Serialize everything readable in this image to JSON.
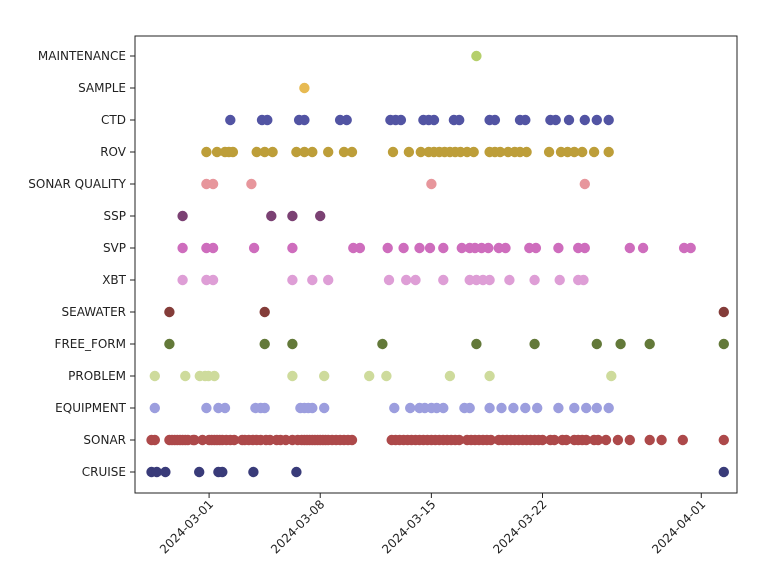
{
  "chart_data": {
    "type": "scatter",
    "title": "",
    "xlabel": "",
    "ylabel": "",
    "grid": false,
    "x_axis": {
      "kind": "date",
      "range": [
        "2024-02-25T08:00",
        "2024-04-03T06:00"
      ],
      "ticks": [
        "2024-03-01",
        "2024-03-08",
        "2024-03-15",
        "2024-03-22",
        "2024-04-01"
      ]
    },
    "categories": [
      "CRUISE",
      "SONAR",
      "EQUIPMENT",
      "PROBLEM",
      "FREE_FORM",
      "SEAWATER",
      "XBT",
      "SVP",
      "SSP",
      "SONAR QUALITY",
      "ROV",
      "CTD",
      "SAMPLE",
      "MAINTENANCE"
    ],
    "series": [
      {
        "category": "CRUISE",
        "color": "#393b79",
        "x": [
          "2024-02-26T09:00",
          "2024-02-26T17:00",
          "2024-02-27T06:00",
          "2024-02-29T09:00",
          "2024-03-01T14:00",
          "2024-03-01T20:00",
          "2024-03-03T19:00",
          "2024-03-06T12:00",
          "2024-04-02T10:00"
        ]
      },
      {
        "category": "SONAR",
        "color": "#ad494a",
        "x": [
          "2024-02-26T09:00",
          "2024-02-26T14:00",
          "2024-02-27T12:00",
          "2024-02-27T16:00",
          "2024-02-27T20:00",
          "2024-02-28T00:00",
          "2024-02-28T04:00",
          "2024-02-28T08:00",
          "2024-02-28T12:00",
          "2024-02-28T16:00",
          "2024-02-29T02:00",
          "2024-02-29T14:00",
          "2024-03-00T00:00",
          "2024-03-01T00:00",
          "2024-03-01T04:00",
          "2024-03-01T08:00",
          "2024-03-01T12:00",
          "2024-03-01T16:00",
          "2024-03-01T20:00",
          "2024-03-02T02:00",
          "2024-03-02T08:00",
          "2024-03-02T14:00",
          "2024-03-03T02:00",
          "2024-03-03T06:00",
          "2024-03-03T12:00",
          "2024-03-03T18:00",
          "2024-03-04T00:00",
          "2024-03-04T06:00",
          "2024-03-04T14:00",
          "2024-03-04T20:00",
          "2024-03-05T06:00",
          "2024-03-05T12:00",
          "2024-03-05T20:00",
          "2024-03-06T06:00",
          "2024-03-06T14:00",
          "2024-03-06T20:00",
          "2024-03-07T00:00",
          "2024-03-07T04:00",
          "2024-03-07T08:00",
          "2024-03-07T12:00",
          "2024-03-07T16:00",
          "2024-03-07T20:00",
          "2024-03-08T00:00",
          "2024-03-08T04:00",
          "2024-03-08T08:00",
          "2024-03-08T12:00",
          "2024-03-08T18:00",
          "2024-03-09T00:00",
          "2024-03-09T06:00",
          "2024-03-09T12:00",
          "2024-03-09T18:00",
          "2024-03-10T00:00",
          "2024-03-12T12:00",
          "2024-03-12T18:00",
          "2024-03-13T00:00",
          "2024-03-13T06:00",
          "2024-03-13T12:00",
          "2024-03-13T18:00",
          "2024-03-14T00:00",
          "2024-03-14T06:00",
          "2024-03-14T12:00",
          "2024-03-14T18:00",
          "2024-03-15T00:00",
          "2024-03-15T06:00",
          "2024-03-15T12:00",
          "2024-03-15T18:00",
          "2024-03-16T00:00",
          "2024-03-16T06:00",
          "2024-03-16T12:00",
          "2024-03-16T18:00",
          "2024-03-17T06:00",
          "2024-03-17T12:00",
          "2024-03-17T18:00",
          "2024-03-18T00:00",
          "2024-03-18T06:00",
          "2024-03-18T12:00",
          "2024-03-18T18:00",
          "2024-03-19T06:00",
          "2024-03-19T12:00",
          "2024-03-19T18:00",
          "2024-03-20T00:00",
          "2024-03-20T06:00",
          "2024-03-20T12:00",
          "2024-03-20T18:00",
          "2024-03-21T00:00",
          "2024-03-21T06:00",
          "2024-03-21T12:00",
          "2024-03-21T18:00",
          "2024-03-22T00:00",
          "2024-03-22T12:00",
          "2024-03-22T18:00",
          "2024-03-23T06:00",
          "2024-03-23T12:00",
          "2024-03-24T00:00",
          "2024-03-24T06:00",
          "2024-03-24T12:00",
          "2024-03-24T18:00",
          "2024-03-25T06:00",
          "2024-03-25T12:00",
          "2024-03-26T00:00",
          "2024-03-26T18:00",
          "2024-03-27T12:00",
          "2024-03-28T18:00",
          "2024-03-29T12:00",
          "2024-03-30T20:00",
          "2024-04-02T10:00"
        ]
      },
      {
        "category": "EQUIPMENT",
        "color": "#9c9ede",
        "x": [
          "2024-02-26T14:00",
          "2024-03-00T20:00",
          "2024-03-01T14:00",
          "2024-03-02T00:00",
          "2024-03-03T22:00",
          "2024-03-04T06:00",
          "2024-03-04T12:00",
          "2024-03-06T18:00",
          "2024-03-07T00:00",
          "2024-03-07T06:00",
          "2024-03-07T12:00",
          "2024-03-08T06:00",
          "2024-03-12T16:00",
          "2024-03-13T16:00",
          "2024-03-14T06:00",
          "2024-03-14T14:00",
          "2024-03-15T00:00",
          "2024-03-15T08:00",
          "2024-03-15T18:00",
          "2024-03-17T02:00",
          "2024-03-17T10:00",
          "2024-03-18T16:00",
          "2024-03-19T10:00",
          "2024-03-20T04:00",
          "2024-03-20T22:00",
          "2024-03-21T16:00",
          "2024-03-23T00:00",
          "2024-03-24T00:00",
          "2024-03-24T18:00",
          "2024-03-25T10:00",
          "2024-03-26T04:00"
        ]
      },
      {
        "category": "PROBLEM",
        "color": "#cedb9c",
        "x": [
          "2024-02-26T14:00",
          "2024-02-28T12:00",
          "2024-02-29T18:00",
          "2024-03-00T10:00",
          "2024-03-00T23:00",
          "2024-03-01T08:00",
          "2024-03-06T06:00",
          "2024-03-08T06:00",
          "2024-03-11T02:00",
          "2024-03-12T04:00",
          "2024-03-16T04:00",
          "2024-03-18T16:00",
          "2024-03-26T08:00"
        ]
      },
      {
        "category": "FREE_FORM",
        "color": "#637939",
        "x": [
          "2024-02-27T12:00",
          "2024-03-04T12:00",
          "2024-03-06T06:00",
          "2024-03-11T22:00",
          "2024-03-17T20:00",
          "2024-03-21T12:00",
          "2024-03-25T10:00",
          "2024-03-26T22:00",
          "2024-03-28T18:00",
          "2024-04-02T10:00"
        ]
      },
      {
        "category": "SEAWATER",
        "color": "#843c39",
        "x": [
          "2024-02-27T12:00",
          "2024-03-04T12:00",
          "2024-04-02T10:00"
        ]
      },
      {
        "category": "XBT",
        "color": "#de9ed6",
        "x": [
          "2024-02-28T08:00",
          "2024-03-00T20:00",
          "2024-03-01T06:00",
          "2024-03-06T06:00",
          "2024-03-07T12:00",
          "2024-03-08T12:00",
          "2024-03-12T08:00",
          "2024-03-13T10:00",
          "2024-03-14T00:00",
          "2024-03-15T18:00",
          "2024-03-17T10:00",
          "2024-03-17T20:00",
          "2024-03-18T06:00",
          "2024-03-18T16:00",
          "2024-03-19T22:00",
          "2024-03-21T12:00",
          "2024-03-23T02:00",
          "2024-03-24T06:00",
          "2024-03-24T14:00"
        ]
      },
      {
        "category": "SVP",
        "color": "#ce6dbd",
        "x": [
          "2024-02-28T08:00",
          "2024-03-00T20:00",
          "2024-03-01T06:00",
          "2024-03-03T20:00",
          "2024-03-06T06:00",
          "2024-03-10T02:00",
          "2024-03-10T12:00",
          "2024-03-12T06:00",
          "2024-03-13T06:00",
          "2024-03-14T06:00",
          "2024-03-14T22:00",
          "2024-03-15T18:00",
          "2024-03-16T22:00",
          "2024-03-17T10:00",
          "2024-03-17T18:00",
          "2024-03-18T04:00",
          "2024-03-18T14:00",
          "2024-03-19T06:00",
          "2024-03-19T16:00",
          "2024-03-21T04:00",
          "2024-03-21T14:00",
          "2024-03-23T00:00",
          "2024-03-24T06:00",
          "2024-03-24T16:00",
          "2024-03-27T12:00",
          "2024-03-28T08:00",
          "2024-03-30T22:00",
          "2024-03-31T08:00"
        ]
      },
      {
        "category": "SSP",
        "color": "#7b4173",
        "x": [
          "2024-02-28T08:00",
          "2024-03-04T22:00",
          "2024-03-06T06:00",
          "2024-03-08T00:00"
        ]
      },
      {
        "category": "SONAR QUALITY",
        "color": "#e7969c",
        "x": [
          "2024-03-00T20:00",
          "2024-03-01T06:00",
          "2024-03-03T16:00",
          "2024-03-15T00:00",
          "2024-03-24T16:00"
        ]
      },
      {
        "category": "ROV",
        "color": "#bd9e39",
        "x": [
          "2024-03-00T20:00",
          "2024-03-01T12:00",
          "2024-03-02T00:00",
          "2024-03-02T06:00",
          "2024-03-02T12:00",
          "2024-03-04T00:00",
          "2024-03-04T12:00",
          "2024-03-05T00:00",
          "2024-03-06T12:00",
          "2024-03-07T00:00",
          "2024-03-07T12:00",
          "2024-03-08T12:00",
          "2024-03-09T12:00",
          "2024-03-10T00:00",
          "2024-03-12T14:00",
          "2024-03-13T14:00",
          "2024-03-14T08:00",
          "2024-03-14T20:00",
          "2024-03-15T04:00",
          "2024-03-15T12:00",
          "2024-03-15T20:00",
          "2024-03-16T04:00",
          "2024-03-16T12:00",
          "2024-03-16T20:00",
          "2024-03-17T06:00",
          "2024-03-17T16:00",
          "2024-03-18T16:00",
          "2024-03-19T00:00",
          "2024-03-19T08:00",
          "2024-03-19T20:00",
          "2024-03-20T06:00",
          "2024-03-20T14:00",
          "2024-03-21T00:00",
          "2024-03-22T10:00",
          "2024-03-23T04:00",
          "2024-03-23T14:00",
          "2024-03-24T00:00",
          "2024-03-24T12:00",
          "2024-03-25T06:00",
          "2024-03-26T04:00"
        ]
      },
      {
        "category": "CTD",
        "color": "#5254a3",
        "x": [
          "2024-03-02T08:00",
          "2024-03-04T08:00",
          "2024-03-04T16:00",
          "2024-03-06T16:00",
          "2024-03-07T00:00",
          "2024-03-09T06:00",
          "2024-03-09T16:00",
          "2024-03-12T10:00",
          "2024-03-12T18:00",
          "2024-03-13T02:00",
          "2024-03-14T12:00",
          "2024-03-14T20:00",
          "2024-03-15T04:00",
          "2024-03-16T10:00",
          "2024-03-16T18:00",
          "2024-03-18T16:00",
          "2024-03-19T00:00",
          "2024-03-20T14:00",
          "2024-03-20T22:00",
          "2024-03-22T12:00",
          "2024-03-22T20:00",
          "2024-03-23T16:00",
          "2024-03-24T16:00",
          "2024-03-25T10:00",
          "2024-03-26T04:00"
        ]
      },
      {
        "category": "SAMPLE",
        "color": "#e7ba52",
        "x": [
          "2024-03-07T00:00"
        ]
      },
      {
        "category": "MAINTENANCE",
        "color": "#b5cf6b",
        "x": [
          "2024-03-17T20:00"
        ]
      }
    ]
  }
}
